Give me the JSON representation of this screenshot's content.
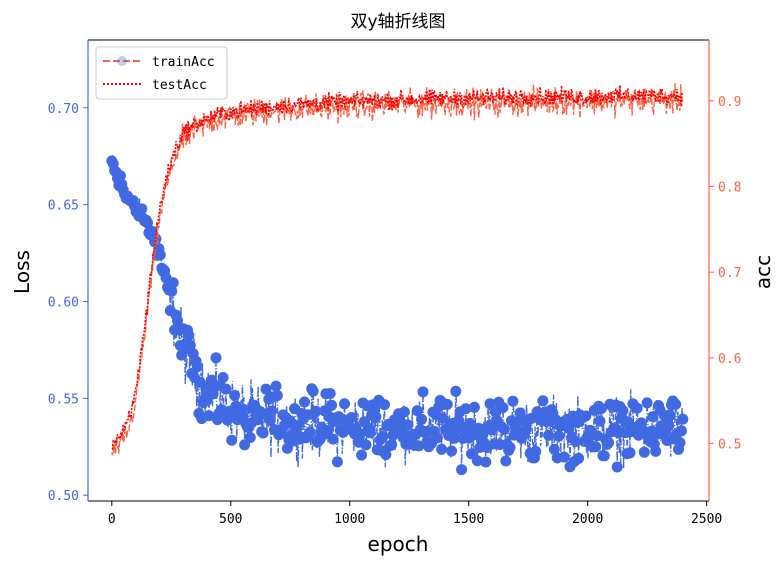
{
  "chart_data": {
    "type": "line",
    "title": "双y轴折线图",
    "xlabel": "epoch",
    "ylabel_left": "Loss",
    "ylabel_right": "acc",
    "xlim": [
      -100,
      2510
    ],
    "ylim_left": [
      0.497,
      0.735
    ],
    "ylim_right": [
      0.433,
      0.971
    ],
    "x_ticks": [
      0,
      500,
      1000,
      1500,
      2000,
      2500
    ],
    "y_left_ticks": [
      0.5,
      0.55,
      0.6,
      0.65,
      0.7
    ],
    "y_left_tick_labels": [
      "0.50",
      "0.55",
      "0.60",
      "0.65",
      "0.70"
    ],
    "y_right_ticks": [
      0.5,
      0.6,
      0.7,
      0.8,
      0.9
    ],
    "y_right_tick_labels": [
      "0.5",
      "0.6",
      "0.7",
      "0.8",
      "0.9"
    ],
    "grid": false,
    "legend_position": "top-left",
    "colors": {
      "loss": "#4169e1",
      "train": "#ff6347",
      "test": "#ff0000",
      "left_axis": "#4169e1",
      "right_axis": "#ff6347"
    },
    "series": [
      {
        "axis": "left",
        "style": "dash-dot line with circle markers",
        "x": [
          0,
          10,
          20,
          40,
          60,
          80,
          100,
          120,
          140,
          160,
          180,
          200,
          220,
          240,
          260,
          280,
          300,
          350,
          400,
          450,
          500,
          600,
          700,
          800,
          900,
          1000,
          1200,
          1400,
          1600,
          1800,
          2000,
          2200,
          2400
        ],
        "values": [
          0.672,
          0.668,
          0.664,
          0.66,
          0.656,
          0.652,
          0.649,
          0.646,
          0.642,
          0.638,
          0.632,
          0.624,
          0.614,
          0.604,
          0.594,
          0.585,
          0.576,
          0.563,
          0.554,
          0.548,
          0.544,
          0.54,
          0.538,
          0.537,
          0.536,
          0.535,
          0.535,
          0.534,
          0.534,
          0.534,
          0.534,
          0.534,
          0.535
        ]
      },
      {
        "name": "trainAcc",
        "axis": "right",
        "style": "dashed",
        "x": [
          0,
          20,
          40,
          60,
          80,
          100,
          120,
          140,
          160,
          180,
          200,
          220,
          240,
          260,
          280,
          300,
          350,
          400,
          450,
          500,
          600,
          700,
          800,
          900,
          1000,
          1200,
          1400,
          1600,
          1800,
          2000,
          2200,
          2400
        ],
        "values": [
          0.49,
          0.495,
          0.5,
          0.51,
          0.525,
          0.55,
          0.59,
          0.63,
          0.68,
          0.72,
          0.76,
          0.79,
          0.81,
          0.83,
          0.845,
          0.855,
          0.866,
          0.874,
          0.879,
          0.882,
          0.886,
          0.889,
          0.891,
          0.892,
          0.894,
          0.896,
          0.897,
          0.898,
          0.899,
          0.9,
          0.9,
          0.901
        ]
      },
      {
        "name": "testAcc",
        "axis": "right",
        "style": "dotted",
        "x": [
          0,
          20,
          40,
          60,
          80,
          100,
          120,
          140,
          160,
          180,
          200,
          220,
          240,
          260,
          280,
          300,
          350,
          400,
          450,
          500,
          600,
          700,
          800,
          900,
          1000,
          1200,
          1400,
          1600,
          1800,
          2000,
          2200,
          2400
        ],
        "values": [
          0.5,
          0.505,
          0.51,
          0.52,
          0.535,
          0.56,
          0.6,
          0.64,
          0.69,
          0.73,
          0.77,
          0.8,
          0.82,
          0.838,
          0.852,
          0.862,
          0.872,
          0.879,
          0.884,
          0.887,
          0.891,
          0.894,
          0.896,
          0.898,
          0.899,
          0.901,
          0.903,
          0.904,
          0.905,
          0.905,
          0.906,
          0.906
        ]
      }
    ]
  }
}
